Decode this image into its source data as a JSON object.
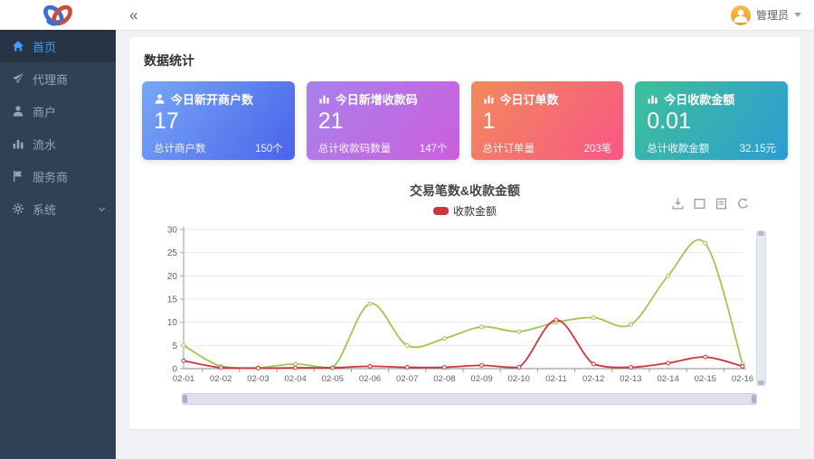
{
  "header": {
    "collapse_icon": "«",
    "user": {
      "name": "管理员"
    },
    "avatar_color_top": "#f7bb4e",
    "avatar_color_bottom": "#ee9c22"
  },
  "sidebar": {
    "bg": "#304156",
    "items": [
      {
        "key": "home",
        "label": "首页",
        "icon": "home-icon",
        "active": true,
        "has_submenu": false
      },
      {
        "key": "agent",
        "label": "代理商",
        "icon": "send-icon",
        "active": false,
        "has_submenu": false
      },
      {
        "key": "merchant",
        "label": "商户",
        "icon": "user-icon",
        "active": false,
        "has_submenu": false
      },
      {
        "key": "transactions",
        "label": "流水",
        "icon": "bar-chart-icon",
        "active": false,
        "has_submenu": false
      },
      {
        "key": "service-provider",
        "label": "服务商",
        "icon": "flag-icon",
        "active": false,
        "has_submenu": false
      },
      {
        "key": "system",
        "label": "系统",
        "icon": "gear-icon",
        "active": false,
        "has_submenu": true
      }
    ]
  },
  "main": {
    "section_title": "数据统计",
    "cards": [
      {
        "key": "new-merchants",
        "icon": "user-icon",
        "title": "今日新开商户数",
        "value": "17",
        "footer_label": "总计商户数",
        "footer_value": "150个",
        "gradient": [
          "#77a7f6",
          "#4a63eb"
        ]
      },
      {
        "key": "new-qrcodes",
        "icon": "bar-chart-icon",
        "title": "今日新增收款码",
        "value": "21",
        "footer_label": "总计收款码数量",
        "footer_value": "147个",
        "gradient": [
          "#a981ea",
          "#cb5fde"
        ]
      },
      {
        "key": "orders",
        "icon": "bar-chart-icon",
        "title": "今日订单数",
        "value": "1",
        "footer_label": "总计订单量",
        "footer_value": "203笔",
        "gradient": [
          "#f28a5c",
          "#f95685"
        ]
      },
      {
        "key": "amount",
        "icon": "bar-chart-icon",
        "title": "今日收款金额",
        "value": "0.01",
        "footer_label": "总计收款金额",
        "footer_value": "32.15元",
        "gradient": [
          "#3ec09a",
          "#2d9cd3"
        ]
      }
    ]
  },
  "toolbox": [
    "save-image-icon",
    "data-zoom-icon",
    "data-view-icon",
    "restore-icon"
  ],
  "chart_data": {
    "type": "line",
    "title": "交易笔数&收款金额",
    "legend": [
      {
        "name": "收款金额",
        "color": "#d0343c"
      }
    ],
    "legend_position": "top",
    "grid": true,
    "smooth": true,
    "categories": [
      "02-01",
      "02-02",
      "02-03",
      "02-04",
      "02-05",
      "02-06",
      "02-07",
      "02-08",
      "02-09",
      "02-10",
      "02-11",
      "02-12",
      "02-13",
      "02-14",
      "02-15",
      "02-16"
    ],
    "series": [
      {
        "name": "交易笔数",
        "color": "#a3c454",
        "values": [
          5,
          0.5,
          0.2,
          1,
          0.2,
          14,
          5,
          6.5,
          9,
          8,
          10,
          11,
          9.5,
          20,
          27,
          1
        ]
      },
      {
        "name": "收款金额",
        "color": "#d0343c",
        "values": [
          1.7,
          0.2,
          0.1,
          0.2,
          0.2,
          0.5,
          0.3,
          0.3,
          0.7,
          0.3,
          10.5,
          1,
          0.3,
          1.2,
          2.5,
          0.5
        ]
      }
    ],
    "ylim": [
      0,
      30
    ],
    "yticks": [
      0,
      5,
      10,
      15,
      20,
      25,
      30
    ],
    "xlabel": "",
    "ylabel": ""
  }
}
